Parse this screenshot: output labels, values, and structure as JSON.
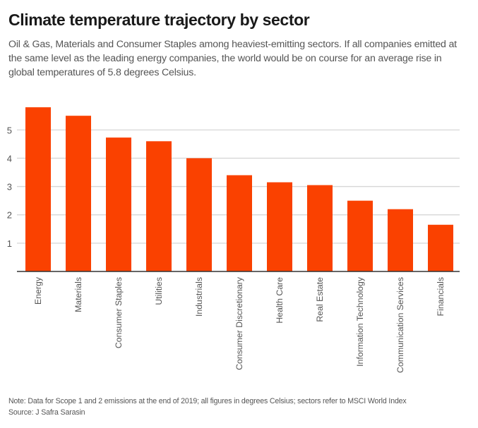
{
  "header": {
    "title": "Climate temperature trajectory by sector",
    "subtitle": "Oil & Gas, Materials and Consumer Staples among heaviest-emitting sectors. If all companies emitted at the same level as the leading energy companies, the world would be on course for an average rise in global temperatures of 5.8 degrees Celsius."
  },
  "footer": {
    "note": "Note: Data for Scope 1 and 2 emissions at the end of 2019; all figures in degrees Celsius; sectors refer to MSCI World Index",
    "source": "Source: J Safra Sarasin"
  },
  "colors": {
    "bar": "#fa4100",
    "grid": "#d6d6d6",
    "axis": "#333333",
    "tick_text": "#555555"
  },
  "chart_data": {
    "type": "bar",
    "title": "Climate temperature trajectory by sector",
    "xlabel": "",
    "ylabel": "",
    "categories": [
      "Energy",
      "Materials",
      "Consumer Staples",
      "Utilities",
      "Industrials",
      "Consumer Discretionary",
      "Health Care",
      "Real Estate",
      "Information Technology",
      "Communication Services",
      "Financials"
    ],
    "values": [
      5.8,
      5.5,
      4.73,
      4.6,
      4.0,
      3.4,
      3.15,
      3.05,
      2.5,
      2.2,
      1.65
    ],
    "ylim": [
      0,
      6
    ],
    "yticks": [
      1,
      2,
      3,
      4,
      5
    ],
    "grid": true,
    "legend": "none",
    "x_label_rotation": "vertical"
  }
}
